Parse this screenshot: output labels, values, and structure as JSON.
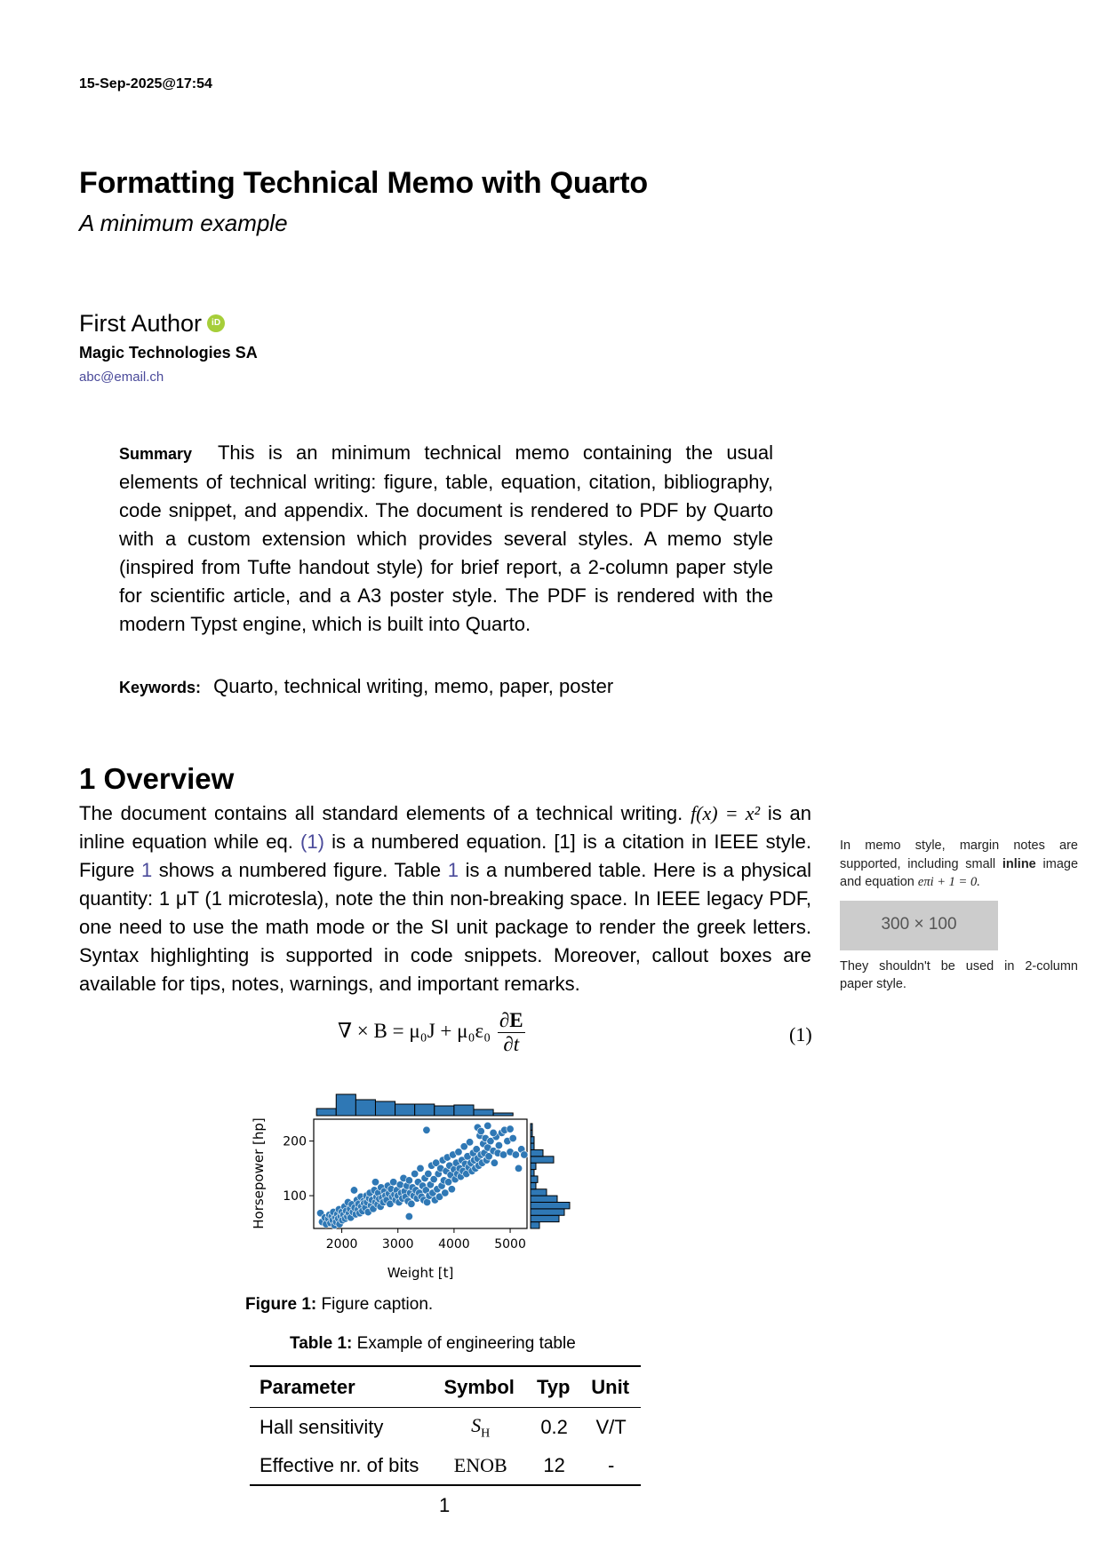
{
  "date": "15-Sep-2025@17:54",
  "title": "Formatting Technical Memo with Quarto",
  "subtitle": "A minimum example",
  "author": {
    "name": "First Author",
    "orcid": "iD",
    "affiliation": "Magic Technologies SA",
    "email": "abc@email.ch"
  },
  "summary": {
    "label": "Summary",
    "text": "This is an minimum technical memo containing the usual elements of technical writing: figure, table, equation, citation, bibliography, code snippet, and appendix. The document is rendered to PDF by Quarto with a custom extension which provides several styles. A memo style (inspired from Tufte handout style) for brief report, a 2-column paper style for scientific article, and a A3 poster style. The PDF is rendered with the modern Typst engine, which is built into Quarto."
  },
  "keywords": {
    "label": "Keywords:",
    "text": "Quarto, technical writing, memo, paper, poster"
  },
  "section": {
    "heading": "1 Overview"
  },
  "body": {
    "p1": "The document contains all standard elements of a technical writing.",
    "inline_eq": "f(x) = x²",
    "p2": "is an inline equation while eq.",
    "eq_ref": "(1)",
    "p3": "is a numbered equation. [1] is a citation in IEEE style. Figure",
    "fig_ref": "1",
    "p4": "shows a numbered figure. Table",
    "tab_ref": "1",
    "p5": "is a numbered table. Here is a physical quantity: 1 μT (1 microtesla), note the thin non-breaking space. In IEEE legacy PDF, one need to use the math mode or the SI unit package to render the greek letters. Syntax highlighting is supported in code snippets. Moreover, callout boxes are available for tips, notes, warnings, and important remarks."
  },
  "margin_note": {
    "text1": "In memo style, margin notes are supported, including small",
    "bold": "inline",
    "text2": "image and equation",
    "equation": "eπi + 1 = 0.",
    "placeholder": "300 × 100",
    "text3": "They shouldn't be used in 2-column paper style."
  },
  "equation": {
    "lhs": "∇ × B = μ₀J + μ₀ε₀",
    "num": "∂E",
    "den": "∂t",
    "number": "(1)"
  },
  "figure": {
    "label": "Figure 1:",
    "caption": "Figure caption."
  },
  "chart_data": {
    "type": "scatter",
    "xlabel": "Weight [t]",
    "ylabel": "Horsepower [hp]",
    "x_ticks": [
      2000,
      3000,
      4000,
      5000
    ],
    "y_ticks": [
      100,
      200
    ],
    "xlim": [
      1500,
      5300
    ],
    "ylim": [
      40,
      240
    ],
    "color": "#2f78b5",
    "points": [
      [
        1620,
        68
      ],
      [
        1650,
        52
      ],
      [
        1700,
        60
      ],
      [
        1720,
        48
      ],
      [
        1760,
        58
      ],
      [
        1780,
        65
      ],
      [
        1800,
        50
      ],
      [
        1820,
        62
      ],
      [
        1840,
        55
      ],
      [
        1850,
        70
      ],
      [
        1870,
        46
      ],
      [
        1890,
        60
      ],
      [
        1900,
        52
      ],
      [
        1920,
        66
      ],
      [
        1940,
        58
      ],
      [
        1950,
        75
      ],
      [
        1960,
        48
      ],
      [
        1980,
        62
      ],
      [
        2000,
        70
      ],
      [
        2010,
        55
      ],
      [
        2030,
        65
      ],
      [
        2050,
        80
      ],
      [
        2060,
        58
      ],
      [
        2080,
        72
      ],
      [
        2100,
        62
      ],
      [
        2110,
        88
      ],
      [
        2130,
        68
      ],
      [
        2150,
        76
      ],
      [
        2160,
        60
      ],
      [
        2180,
        84
      ],
      [
        2200,
        70
      ],
      [
        2220,
        110
      ],
      [
        2230,
        78
      ],
      [
        2250,
        66
      ],
      [
        2270,
        92
      ],
      [
        2290,
        75
      ],
      [
        2300,
        85
      ],
      [
        2320,
        68
      ],
      [
        2340,
        98
      ],
      [
        2350,
        80
      ],
      [
        2370,
        72
      ],
      [
        2390,
        90
      ],
      [
        2400,
        86
      ],
      [
        2420,
        78
      ],
      [
        2440,
        100
      ],
      [
        2450,
        88
      ],
      [
        2470,
        70
      ],
      [
        2490,
        95
      ],
      [
        2500,
        105
      ],
      [
        2520,
        82
      ],
      [
        2540,
        92
      ],
      [
        2560,
        76
      ],
      [
        2580,
        110
      ],
      [
        2600,
        88
      ],
      [
        2620,
        98
      ],
      [
        2640,
        84
      ],
      [
        2650,
        105
      ],
      [
        2670,
        94
      ],
      [
        2690,
        80
      ],
      [
        2700,
        115
      ],
      [
        2720,
        96
      ],
      [
        2740,
        88
      ],
      [
        2760,
        108
      ],
      [
        2780,
        100
      ],
      [
        2800,
        92
      ],
      [
        2820,
        118
      ],
      [
        2840,
        104
      ],
      [
        2860,
        85
      ],
      [
        2880,
        112
      ],
      [
        2900,
        98
      ],
      [
        2920,
        125
      ],
      [
        2940,
        102
      ],
      [
        2960,
        92
      ],
      [
        2980,
        110
      ],
      [
        3000,
        100
      ],
      [
        3020,
        88
      ],
      [
        3040,
        120
      ],
      [
        3060,
        105
      ],
      [
        3080,
        95
      ],
      [
        3100,
        132
      ],
      [
        3120,
        108
      ],
      [
        3140,
        98
      ],
      [
        3160,
        118
      ],
      [
        3180,
        90
      ],
      [
        3200,
        128
      ],
      [
        3220,
        105
      ],
      [
        3240,
        85
      ],
      [
        3260,
        115
      ],
      [
        3280,
        100
      ],
      [
        3300,
        140
      ],
      [
        3320,
        110
      ],
      [
        3340,
        95
      ],
      [
        3360,
        125
      ],
      [
        3380,
        105
      ],
      [
        3400,
        150
      ],
      [
        3420,
        98
      ],
      [
        3440,
        118
      ],
      [
        3460,
        92
      ],
      [
        3480,
        132
      ],
      [
        3500,
        110
      ],
      [
        3510,
        220
      ],
      [
        3520,
        88
      ],
      [
        3540,
        140
      ],
      [
        3560,
        100
      ],
      [
        3580,
        120
      ],
      [
        3600,
        155
      ],
      [
        3620,
        105
      ],
      [
        3640,
        130
      ],
      [
        3660,
        92
      ],
      [
        3680,
        160
      ],
      [
        3700,
        112
      ],
      [
        3720,
        140
      ],
      [
        3740,
        98
      ],
      [
        3760,
        150
      ],
      [
        3780,
        118
      ],
      [
        3800,
        165
      ],
      [
        3820,
        128
      ],
      [
        3840,
        105
      ],
      [
        3860,
        145
      ],
      [
        3880,
        170
      ],
      [
        3900,
        125
      ],
      [
        3920,
        155
      ],
      [
        3940,
        138
      ],
      [
        3960,
        112
      ],
      [
        3980,
        175
      ],
      [
        4000,
        148
      ],
      [
        4020,
        130
      ],
      [
        4040,
        160
      ],
      [
        4060,
        140
      ],
      [
        4080,
        180
      ],
      [
        4100,
        150
      ],
      [
        4120,
        135
      ],
      [
        4140,
        165
      ],
      [
        4160,
        145
      ],
      [
        4180,
        190
      ],
      [
        4200,
        158
      ],
      [
        4220,
        140
      ],
      [
        4240,
        172
      ],
      [
        4260,
        152
      ],
      [
        4280,
        198
      ],
      [
        4300,
        160
      ],
      [
        4320,
        145
      ],
      [
        4340,
        178
      ],
      [
        4360,
        165
      ],
      [
        4380,
        150
      ],
      [
        4400,
        185
      ],
      [
        4420,
        168
      ],
      [
        4440,
        155
      ],
      [
        4460,
        210
      ],
      [
        4480,
        175
      ],
      [
        4500,
        160
      ],
      [
        4520,
        195
      ],
      [
        4540,
        178
      ],
      [
        4560,
        205
      ],
      [
        4580,
        165
      ],
      [
        4600,
        188
      ],
      [
        4620,
        172
      ],
      [
        4650,
        200
      ],
      [
        4700,
        182
      ],
      [
        4720,
        160
      ],
      [
        4750,
        208
      ],
      [
        4780,
        178
      ],
      [
        4800,
        192
      ],
      [
        4850,
        215
      ],
      [
        4880,
        175
      ],
      [
        4950,
        200
      ],
      [
        5000,
        180
      ],
      [
        5050,
        205
      ],
      [
        5100,
        175
      ],
      [
        5150,
        150
      ],
      [
        5200,
        185
      ],
      [
        5250,
        175
      ],
      [
        4420,
        225
      ],
      [
        4480,
        218
      ],
      [
        4600,
        228
      ],
      [
        4700,
        215
      ],
      [
        4900,
        220
      ],
      [
        5000,
        222
      ],
      [
        3200,
        62
      ],
      [
        2600,
        125
      ]
    ],
    "top_hist": {
      "bin_edges": [
        1550,
        1900,
        2250,
        2600,
        2950,
        3300,
        3650,
        4000,
        4350,
        4700,
        5050
      ],
      "counts": [
        8,
        24,
        18,
        16,
        13,
        13,
        11,
        12,
        7,
        3
      ]
    },
    "right_hist": {
      "bin_edges": [
        40,
        52,
        64,
        76,
        88,
        100,
        112,
        124,
        136,
        148,
        160,
        172,
        184,
        196,
        208,
        220,
        232
      ],
      "counts": [
        10,
        32,
        38,
        44,
        30,
        18,
        6,
        8,
        4,
        6,
        26,
        14,
        4,
        4,
        2,
        2
      ]
    }
  },
  "table": {
    "label": "Table 1:",
    "caption": "Example of engineering table",
    "headers": [
      "Parameter",
      "Symbol",
      "Typ",
      "Unit"
    ],
    "rows": [
      {
        "param": "Hall sensitivity",
        "symbol": "S",
        "symbol_sub": "H",
        "typ": "0.2",
        "unit": "V/T"
      },
      {
        "param": "Effective nr. of bits",
        "symbol": "ENOB",
        "typ": "12",
        "unit": "-"
      }
    ]
  },
  "page_number": "1"
}
